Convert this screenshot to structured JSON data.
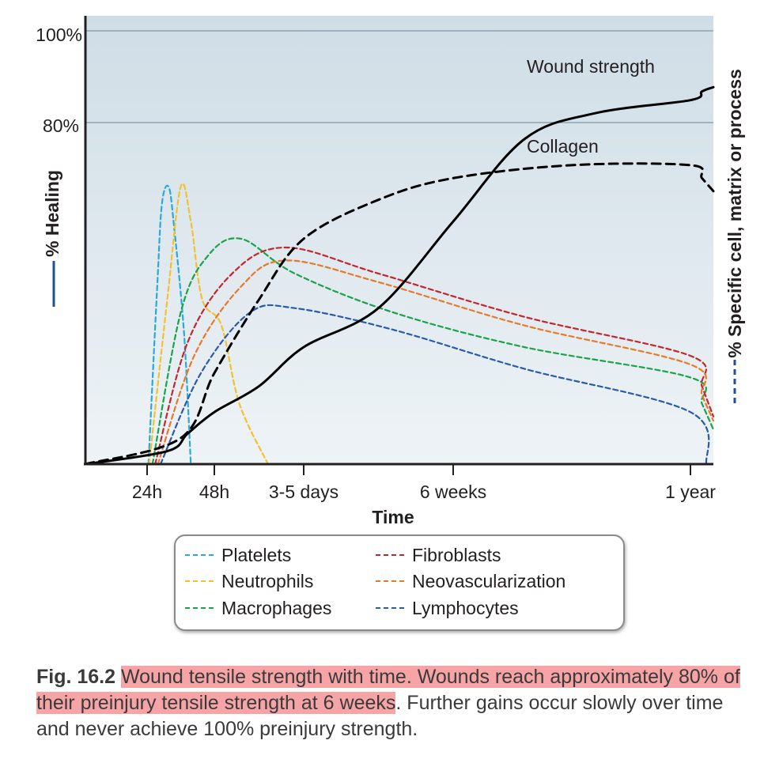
{
  "chart_data": {
    "type": "line",
    "y_left_label": "% Healing",
    "y_right_label": "% Specific cell, matrix or process",
    "xlabel": "Time",
    "x_ticks": [
      "24h",
      "48h",
      "3-5 days",
      "6 weeks",
      "1 year"
    ],
    "y_ticks": [
      "100%",
      "80%"
    ],
    "ylim": [
      0,
      100
    ],
    "grid": "horizontal at 80% and 100%",
    "curve_labels": {
      "wound_strength": "Wound strength",
      "collagen": "Collagen"
    },
    "series": [
      {
        "name": "Wound strength",
        "style": "solid",
        "color": "#000000",
        "points": [
          [
            0,
            0
          ],
          [
            0.3,
            3
          ],
          [
            0.6,
            7
          ],
          [
            1.0,
            12
          ],
          [
            1.5,
            18
          ],
          [
            2.0,
            27
          ],
          [
            2.5,
            36
          ],
          [
            3.0,
            56
          ],
          [
            3.3,
            75
          ],
          [
            3.6,
            81
          ],
          [
            4.0,
            84
          ],
          [
            4.5,
            86
          ],
          [
            5.0,
            87
          ]
        ]
      },
      {
        "name": "Collagen",
        "style": "dashed",
        "color": "#000000",
        "points": [
          [
            0,
            0
          ],
          [
            0.5,
            6
          ],
          [
            1.0,
            21
          ],
          [
            1.5,
            38
          ],
          [
            2.0,
            52
          ],
          [
            2.5,
            61
          ],
          [
            3.0,
            66
          ],
          [
            3.5,
            69
          ],
          [
            4.0,
            69
          ],
          [
            4.5,
            66
          ],
          [
            5.0,
            63
          ]
        ]
      },
      {
        "name": "Platelets",
        "style": "dashed",
        "color": "#29a9d8",
        "points": [
          [
            0.02,
            0
          ],
          [
            0.15,
            41
          ],
          [
            0.22,
            60
          ],
          [
            0.32,
            64
          ],
          [
            0.4,
            55
          ],
          [
            0.55,
            30
          ],
          [
            0.65,
            0
          ]
        ]
      },
      {
        "name": "Neutrophils",
        "style": "dashed",
        "color": "#f2c12e",
        "points": [
          [
            0.03,
            0
          ],
          [
            0.3,
            38
          ],
          [
            0.5,
            64
          ],
          [
            0.65,
            56
          ],
          [
            0.82,
            38
          ],
          [
            1.08,
            32
          ],
          [
            1.28,
            14
          ],
          [
            1.6,
            0
          ]
        ]
      },
      {
        "name": "Macrophages",
        "style": "dashed",
        "color": "#1aa34a",
        "points": [
          [
            0.08,
            0
          ],
          [
            0.5,
            35
          ],
          [
            0.9,
            48
          ],
          [
            1.3,
            52
          ],
          [
            1.9,
            44
          ],
          [
            2.6,
            35
          ],
          [
            3.3,
            27
          ],
          [
            4.0,
            20
          ],
          [
            4.5,
            14
          ],
          [
            5.0,
            8
          ]
        ]
      },
      {
        "name": "Fibroblasts",
        "style": "dashed",
        "color": "#c1272d",
        "points": [
          [
            0.12,
            0
          ],
          [
            0.6,
            28
          ],
          [
            1.2,
            44
          ],
          [
            1.8,
            50
          ],
          [
            2.5,
            44
          ],
          [
            3.3,
            34
          ],
          [
            4.0,
            25
          ],
          [
            4.5,
            18
          ],
          [
            5.0,
            11
          ]
        ]
      },
      {
        "name": "Neovascularization",
        "style": "dashed",
        "color": "#e8792b",
        "points": [
          [
            0.16,
            0
          ],
          [
            0.7,
            25
          ],
          [
            1.3,
            41
          ],
          [
            1.8,
            47
          ],
          [
            2.5,
            42
          ],
          [
            3.3,
            32
          ],
          [
            4.0,
            23
          ],
          [
            4.5,
            16
          ],
          [
            5.0,
            10
          ]
        ]
      },
      {
        "name": "Lymphocytes",
        "style": "dashed",
        "color": "#2a5ba8",
        "points": [
          [
            0.2,
            0
          ],
          [
            0.8,
            21
          ],
          [
            1.4,
            35
          ],
          [
            1.9,
            36
          ],
          [
            2.6,
            31
          ],
          [
            3.3,
            22
          ],
          [
            4.0,
            12
          ],
          [
            4.7,
            0
          ]
        ]
      }
    ]
  },
  "legend": [
    {
      "label": "Platelets",
      "color": "#29a9d8"
    },
    {
      "label": "Neutrophils",
      "color": "#f2c12e"
    },
    {
      "label": "Macrophages",
      "color": "#1aa34a"
    },
    {
      "label": "Fibroblasts",
      "color": "#c1272d"
    },
    {
      "label": "Neovascularization",
      "color": "#e8792b"
    },
    {
      "label": "Lymphocytes",
      "color": "#2a5ba8"
    }
  ],
  "caption": {
    "fig_label": "Fig. 16.2",
    "highlight_text": "Wound tensile strength with time. Wounds reach approximately 80% of their preinjury tensile strength at 6 weeks",
    "rest_text": ". Further gains occur slowly over time and never achieve 100% preinjury strength."
  },
  "colors": {
    "plot_background_top": "#cfdde6",
    "plot_background_bottom": "#eef3f6",
    "highlight": "#f7a4a7",
    "healing_axis_marker": "#1f4e9b"
  }
}
